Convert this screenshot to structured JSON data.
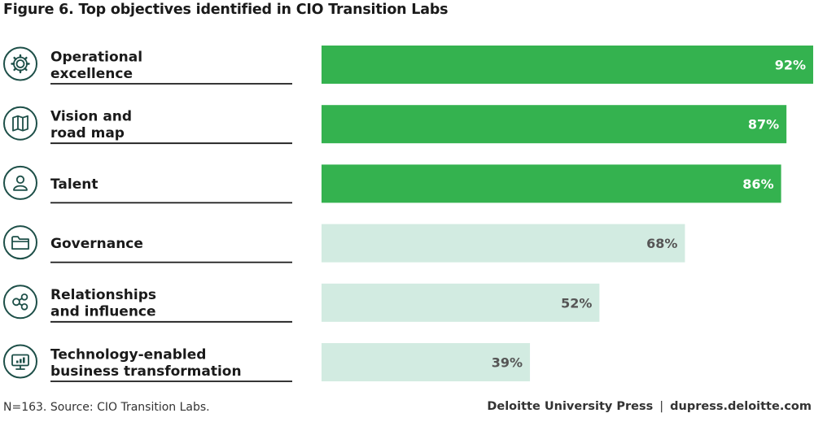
{
  "figure": {
    "title": "Figure 6. Top objectives identified in CIO Transition Labs",
    "source_note": "N=163. Source: CIO Transition Labs.",
    "publisher": "Deloitte University Press",
    "separator": "|",
    "website": "dupress.deloitte.com"
  },
  "colors": {
    "highlight_bar": "#34b24f",
    "muted_bar": "#d2ebe1",
    "highlight_label": "#ffffff",
    "muted_label": "#555555",
    "icon_color": "#1d4f48",
    "rule_color": "#1a1a1a"
  },
  "chart_data": {
    "type": "bar",
    "orientation": "horizontal",
    "title": "Figure 6. Top objectives identified in CIO Transition Labs",
    "categories": [
      [
        "Operational",
        "excellence"
      ],
      [
        "Vision and",
        "road map"
      ],
      [
        "Talent"
      ],
      [
        "Governance"
      ],
      [
        "Relationships",
        "and influence"
      ],
      [
        "Technology-enabled",
        "business transformation"
      ]
    ],
    "icons": [
      "gear-icon",
      "map-icon",
      "person-icon",
      "folder-icon",
      "network-icon",
      "monitor-chart-icon"
    ],
    "values": [
      92,
      87,
      86,
      68,
      52,
      39
    ],
    "value_labels": [
      "92%",
      "87%",
      "86%",
      "68%",
      "52%",
      "39%"
    ],
    "highlighted": [
      true,
      true,
      true,
      false,
      false,
      false
    ],
    "xlim": [
      0,
      92
    ],
    "grid": false,
    "legend": "none"
  }
}
